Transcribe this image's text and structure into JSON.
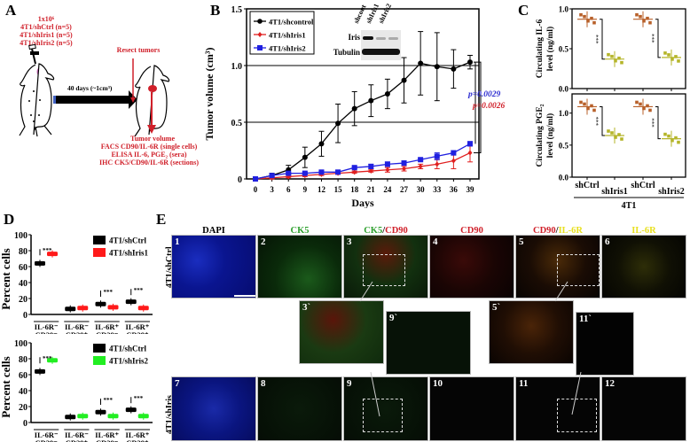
{
  "panelA": {
    "letter": "A",
    "injection_lines": [
      "1x10⁶",
      "4T1/shCtrl (n=5)",
      "4T1/shIris1 (n=5)",
      "4T1/shIris2 (n=5)"
    ],
    "arrow_label": "40 days (~1cm³)",
    "resect_label": "Resect tumors",
    "outcome_lines": [
      "Tumor volume",
      "FACS CD90/IL-6R (single cells)",
      "ELISA IL-6, PGE₂ (sera)",
      "IHC CK5/CD90/IL-6R (sections)"
    ]
  },
  "panelB": {
    "letter": "B",
    "western": {
      "lanes": [
        "shcont",
        "shIris1",
        "shIris2"
      ],
      "rows": [
        "Iris",
        "Tubulin"
      ]
    },
    "pvalues": [
      {
        "text": "p=0.0029",
        "color": "#2b2bd0"
      },
      {
        "text": "p=0.0026",
        "color": "#d0202a"
      }
    ]
  },
  "panelC": {
    "letter": "C",
    "group_label": "4T1"
  },
  "panelD": {
    "letter": "D"
  },
  "panelE": {
    "letter": "E",
    "columns": [
      {
        "parts": [
          {
            "t": "DAPI",
            "c": "#000000"
          }
        ]
      },
      {
        "parts": [
          {
            "t": "CK5",
            "c": "#2ea02e"
          }
        ]
      },
      {
        "parts": [
          {
            "t": "CK5",
            "c": "#2ea02e"
          },
          {
            "t": "/",
            "c": "#000000"
          },
          {
            "t": "CD90",
            "c": "#d0202a"
          }
        ]
      },
      {
        "parts": [
          {
            "t": "CD90",
            "c": "#d0202a"
          }
        ]
      },
      {
        "parts": [
          {
            "t": "CD90",
            "c": "#d0202a"
          },
          {
            "t": "/",
            "c": "#000000"
          },
          {
            "t": "IL-6R",
            "c": "#e8e020"
          }
        ]
      },
      {
        "parts": [
          {
            "t": "IL-6R",
            "c": "#e8e020"
          }
        ]
      }
    ],
    "rows": [
      "4T1/shCtrl",
      "4T1/shIris"
    ],
    "tiles_row1": [
      "1",
      "2",
      "3",
      "4",
      "5",
      "6"
    ],
    "tiles_row2": [
      "7",
      "8",
      "9",
      "10",
      "11",
      "12"
    ],
    "insets": [
      "3`",
      "9`",
      "5`",
      "11`"
    ]
  },
  "chart_data": [
    {
      "id": "B",
      "type": "line",
      "title": "",
      "xlabel": "Days",
      "ylabel": "Tumor volume (cm³)",
      "x": [
        0,
        3,
        6,
        9,
        12,
        15,
        18,
        21,
        24,
        27,
        30,
        33,
        36,
        39
      ],
      "xticks": [
        "0",
        "3",
        "6",
        "9",
        "12",
        "15",
        "18",
        "21",
        "24",
        "27",
        "30",
        "33",
        "36",
        "39"
      ],
      "ylim": [
        0,
        1.5
      ],
      "yticks": [
        "0",
        "0.5",
        "1.0",
        "1.5"
      ],
      "grid_y": [
        0.5,
        1.0
      ],
      "legend_position": "upper left",
      "series": [
        {
          "name": "4T1/shcontrol",
          "color": "#000000",
          "marker": "circle",
          "values": [
            0,
            0.03,
            0.08,
            0.19,
            0.31,
            0.49,
            0.62,
            0.69,
            0.75,
            0.87,
            1.02,
            0.99,
            0.97,
            1.03
          ],
          "errors": [
            0,
            0.02,
            0.04,
            0.09,
            0.11,
            0.17,
            0.15,
            0.14,
            0.13,
            0.2,
            0.28,
            0.3,
            0.17,
            0.06
          ]
        },
        {
          "name": "4T1/shIris1",
          "color": "#e02020",
          "marker": "diamond",
          "values": [
            0,
            0.01,
            0.02,
            0.03,
            0.04,
            0.05,
            0.06,
            0.07,
            0.08,
            0.09,
            0.11,
            0.13,
            0.16,
            0.23
          ],
          "errors": [
            0,
            0.01,
            0.01,
            0.01,
            0.01,
            0.01,
            0.01,
            0.01,
            0.02,
            0.02,
            0.02,
            0.04,
            0.07,
            0.08
          ]
        },
        {
          "name": "4T1/shIris2",
          "color": "#2020e0",
          "marker": "square",
          "values": [
            0,
            0.03,
            0.05,
            0.05,
            0.06,
            0.06,
            0.1,
            0.11,
            0.13,
            0.14,
            0.17,
            0.2,
            0.23,
            0.31
          ],
          "errors": [
            0,
            0.01,
            0.01,
            0.01,
            0.01,
            0.01,
            0.01,
            0.02,
            0.02,
            0.02,
            0.01,
            0.03,
            0.02,
            0.02
          ]
        }
      ],
      "annotations": [
        "p=0.0029",
        "p=0.0026"
      ]
    },
    {
      "id": "C-top",
      "type": "scatter",
      "ylabel": "Circulating IL-6 level (ng/ml)",
      "categories": [
        "shCtrl",
        "shIris1",
        "shCtrl",
        "shIris2"
      ],
      "ylim": [
        0,
        1.0
      ],
      "yticks": [
        "0.0",
        "0.5",
        "1.0"
      ],
      "means": [
        0.87,
        0.37,
        0.87,
        0.39
      ],
      "colors": [
        "#b8602a",
        "#b5b52a",
        "#b8602a",
        "#b5b52a"
      ],
      "annotations": [
        "***",
        "***"
      ]
    },
    {
      "id": "C-bottom",
      "type": "scatter",
      "ylabel": "Circulating PGE₂ level (ng/ml)",
      "categories": [
        "shCtrl",
        "shIris1",
        "shCtrl",
        "shIris2"
      ],
      "group_label": "4T1",
      "ylim": [
        0,
        1.3
      ],
      "yticks": [
        "0.0",
        "0.5",
        "1.0"
      ],
      "means": [
        1.1,
        0.65,
        1.1,
        0.6
      ],
      "colors": [
        "#b8602a",
        "#b5b52a",
        "#b8602a",
        "#b5b52a"
      ],
      "annotations": [
        "***",
        "***"
      ]
    },
    {
      "id": "D-top",
      "type": "bar",
      "ylabel": "Percent cells",
      "categories": [
        "IL-6R⁻ CD29⁻",
        "IL-6R⁻ CD29⁺",
        "IL-6R⁺ CD29⁻",
        "IL-6R⁺ CD29⁺"
      ],
      "ylim": [
        0,
        100
      ],
      "yticks": [
        "0",
        "20",
        "40",
        "60",
        "80",
        "100"
      ],
      "legend_position": "upper right",
      "series": [
        {
          "name": "4T1/shCtrl",
          "color": "#000000",
          "values": [
            64,
            7,
            13,
            16
          ]
        },
        {
          "name": "4T1/shIris1",
          "color": "#ff1a1a",
          "values": [
            76,
            8,
            9,
            8
          ]
        }
      ],
      "annotations": [
        "***",
        "***",
        "***"
      ]
    },
    {
      "id": "D-bottom",
      "type": "bar",
      "ylabel": "Percent cells",
      "categories": [
        "IL-6R⁻ CD29⁻",
        "IL-6R⁻ CD29⁺",
        "IL-6R⁺ CD29⁻",
        "IL-6R⁺ CD29⁺"
      ],
      "ylim": [
        0,
        100
      ],
      "yticks": [
        "0",
        "20",
        "40",
        "60",
        "80",
        "100"
      ],
      "legend_position": "upper right",
      "series": [
        {
          "name": "4T1/shCtrl",
          "color": "#000000",
          "values": [
            64,
            7,
            13,
            16
          ]
        },
        {
          "name": "4T1/shIris2",
          "color": "#22ee22",
          "values": [
            78,
            8,
            8,
            8
          ]
        }
      ],
      "annotations": [
        "***",
        "***",
        "***"
      ]
    }
  ]
}
